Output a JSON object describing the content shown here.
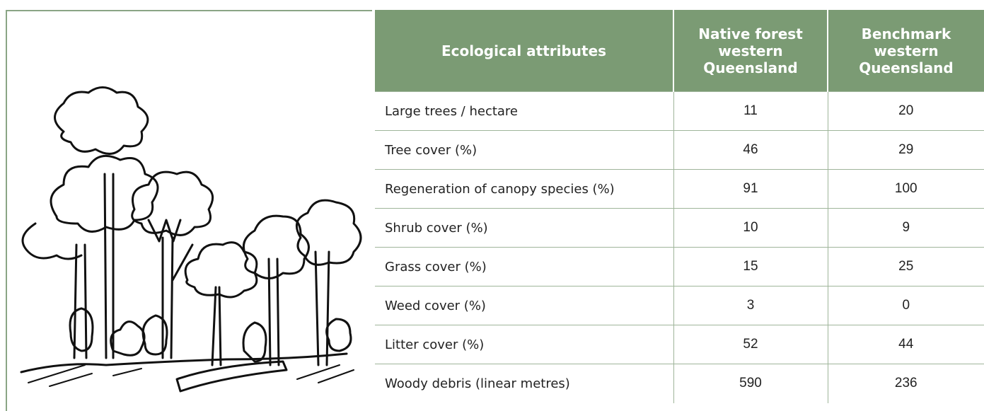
{
  "table": {
    "header": [
      "Ecological attributes",
      "Native forest western Queensland",
      "Benchmark western Queensland"
    ],
    "rows": [
      [
        "Large trees / hectare",
        11,
        20
      ],
      [
        "Tree cover (%)",
        46,
        29
      ],
      [
        "Regeneration of canopy species (%)",
        91,
        100
      ],
      [
        "Shrub cover (%)",
        10,
        9
      ],
      [
        "Grass cover (%)",
        15,
        25
      ],
      [
        "Weed cover (%)",
        3,
        0
      ],
      [
        "Litter cover (%)",
        52,
        44
      ],
      [
        "Woody debris (linear metres)",
        590,
        236
      ]
    ]
  }
}
